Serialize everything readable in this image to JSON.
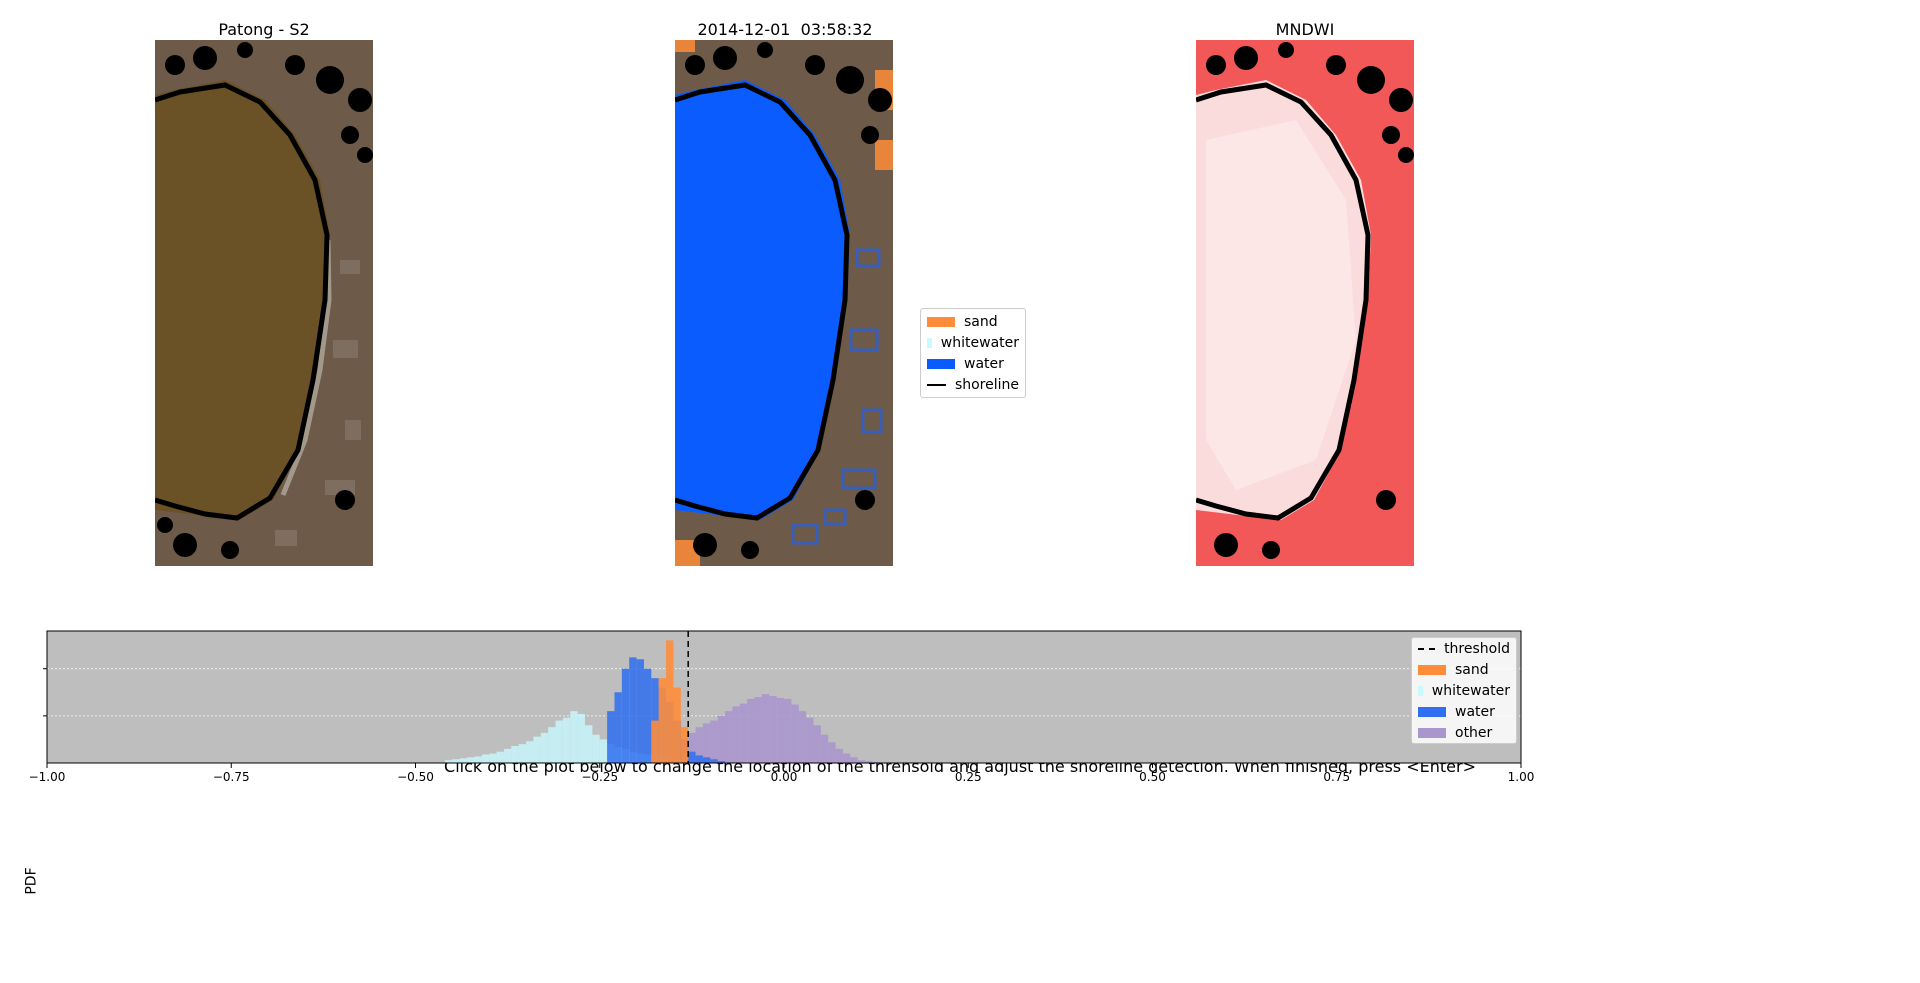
{
  "panels": {
    "left_title": "Patong - S2",
    "center_title": "2014-12-01  03:58:32",
    "right_title": "MNDWI"
  },
  "class_legend": {
    "items": [
      {
        "label": "sand",
        "color": "#ff8c3a",
        "kind": "patch"
      },
      {
        "label": "whitewater",
        "color": "#c8faff",
        "kind": "patch"
      },
      {
        "label": "water",
        "color": "#0a5cff",
        "kind": "patch"
      },
      {
        "label": "shoreline",
        "color": "#000000",
        "kind": "line"
      }
    ]
  },
  "histogram": {
    "title": "Click on the plot below to change the location of the threhsold and adjust the shoreline detection. When finished, press <Enter>",
    "ylabel": "PDF"
  },
  "chart_data": {
    "type": "bar",
    "title": "Click on the plot below to change the location of the threhsold and adjust the shoreline detection. When finished, press <Enter>",
    "xlabel": "",
    "ylabel": "PDF",
    "xlim": [
      -1.0,
      1.0
    ],
    "ylim": [
      0,
      14
    ],
    "x_ticks": [
      -1.0,
      -0.75,
      -0.5,
      -0.25,
      0.0,
      0.25,
      0.5,
      0.75,
      1.0
    ],
    "x_tick_labels": [
      "−1.00",
      "−0.75",
      "−0.50",
      "−0.25",
      "0.00",
      "0.25",
      "0.50",
      "0.75",
      "1.00"
    ],
    "y_grid": [
      5,
      10
    ],
    "bin_width": 0.01,
    "background": "#bebebe",
    "threshold": -0.13,
    "legend_position": "top-right",
    "legend": [
      {
        "label": "threshold",
        "color": "#000000",
        "kind": "dash"
      },
      {
        "label": "sand",
        "color": "#ff8c3a",
        "kind": "patch"
      },
      {
        "label": "whitewater",
        "color": "#c8faff",
        "kind": "patch"
      },
      {
        "label": "water",
        "color": "#2f6ff0",
        "kind": "patch"
      },
      {
        "label": "other",
        "color": "#a996cc",
        "kind": "patch"
      }
    ],
    "series": [
      {
        "name": "other",
        "color": "#a996cc",
        "opacity": 0.9,
        "centers": [
          -0.145,
          -0.135,
          -0.125,
          -0.115,
          -0.105,
          -0.095,
          -0.085,
          -0.075,
          -0.065,
          -0.055,
          -0.045,
          -0.035,
          -0.025,
          -0.015,
          -0.005,
          0.005,
          0.015,
          0.025,
          0.035,
          0.045,
          0.055,
          0.065,
          0.075,
          0.085,
          0.095,
          0.105,
          0.115,
          0.125,
          0.135
        ],
        "values": [
          1.0,
          2.5,
          3.2,
          3.8,
          4.2,
          4.5,
          5.0,
          5.5,
          6.0,
          6.3,
          6.8,
          7.0,
          7.3,
          7.1,
          6.9,
          6.8,
          6.2,
          5.5,
          4.8,
          4.0,
          3.0,
          2.2,
          1.5,
          1.0,
          0.6,
          0.3,
          0.2,
          0.1,
          0.05
        ]
      },
      {
        "name": "whitewater",
        "color": "#c8faff",
        "opacity": 0.8,
        "centers": [
          -0.455,
          -0.445,
          -0.435,
          -0.425,
          -0.415,
          -0.405,
          -0.395,
          -0.385,
          -0.375,
          -0.365,
          -0.355,
          -0.345,
          -0.335,
          -0.325,
          -0.315,
          -0.305,
          -0.295,
          -0.285,
          -0.275,
          -0.265,
          -0.255,
          -0.245,
          -0.235,
          -0.225,
          -0.215,
          -0.205,
          -0.195,
          -0.185,
          -0.175,
          -0.165,
          -0.155,
          -0.145
        ],
        "values": [
          0.3,
          0.4,
          0.5,
          0.6,
          0.7,
          0.9,
          1.0,
          1.2,
          1.5,
          1.8,
          2.0,
          2.3,
          2.8,
          3.2,
          3.8,
          4.5,
          4.8,
          5.5,
          5.2,
          4.0,
          3.0,
          2.5,
          2.0,
          1.7,
          1.5,
          1.2,
          1.0,
          0.9,
          0.8,
          0.7,
          0.5,
          0.3
        ]
      },
      {
        "name": "water",
        "color": "#2f6ff0",
        "opacity": 0.85,
        "centers": [
          -0.235,
          -0.225,
          -0.215,
          -0.205,
          -0.195,
          -0.185,
          -0.175,
          -0.165,
          -0.155,
          -0.145,
          -0.135,
          -0.125,
          -0.115,
          -0.105,
          -0.095,
          -0.085
        ],
        "values": [
          5.5,
          7.5,
          10.0,
          11.2,
          11.0,
          10.0,
          9.0,
          8.0,
          6.5,
          4.5,
          2.5,
          1.2,
          0.8,
          0.6,
          0.4,
          0.2
        ]
      },
      {
        "name": "sand",
        "color": "#ff8c3a",
        "opacity": 0.9,
        "centers": [
          -0.175,
          -0.165,
          -0.155,
          -0.145,
          -0.135
        ],
        "values": [
          4.5,
          9.0,
          13.0,
          8.0,
          3.8
        ]
      }
    ]
  }
}
